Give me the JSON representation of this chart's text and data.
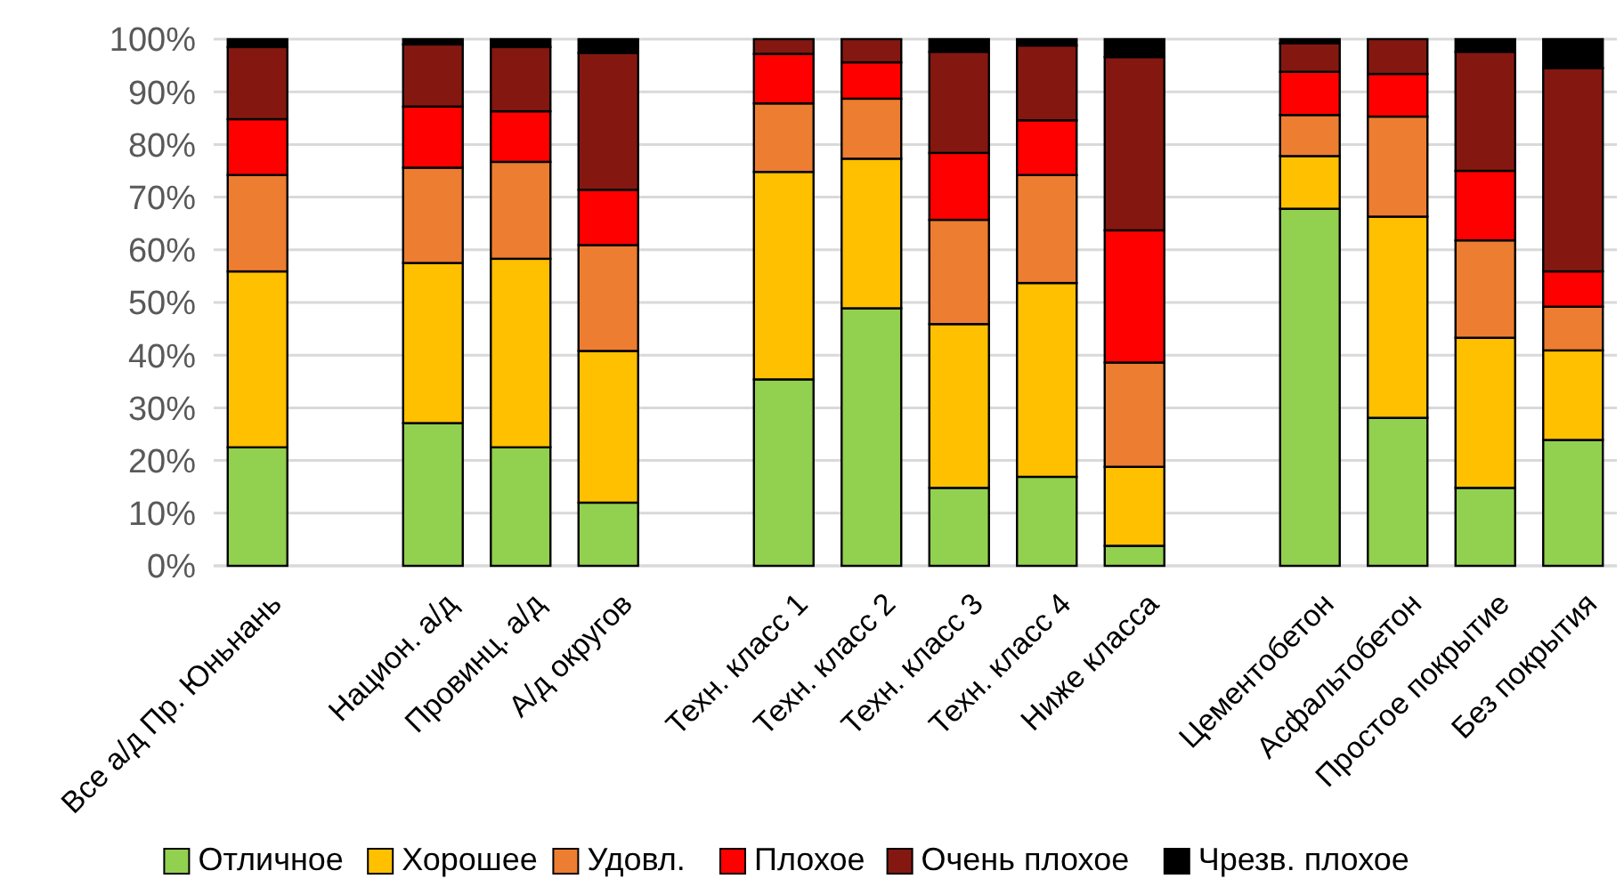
{
  "chart_data": {
    "type": "bar",
    "stacked": true,
    "categories": [
      "Все а/д Пр. Юньнань",
      null,
      "Национ. а/д",
      "Провинц. а/д",
      "А/д округов",
      null,
      "Техн. класс 1",
      "Техн. класс 2",
      "Техн. класс 3",
      "Техн. класс 4",
      "Ниже класса",
      null,
      "Цементобетон",
      "Асфальтобетон",
      "Простое покрытие",
      "Без покрытия"
    ],
    "series": [
      {
        "name": "Отличное",
        "color": "#92d050",
        "values": [
          22.5,
          null,
          27.1,
          22.5,
          12.0,
          null,
          35.4,
          48.9,
          14.8,
          16.9,
          3.8,
          null,
          67.8,
          28.1,
          14.8,
          23.9
        ]
      },
      {
        "name": "Хорошее",
        "color": "#ffc000",
        "values": [
          33.4,
          null,
          30.4,
          35.8,
          28.8,
          null,
          39.4,
          28.4,
          31.1,
          36.8,
          15.0,
          null,
          10.0,
          38.2,
          28.5,
          17.0
        ]
      },
      {
        "name": "Удовл.",
        "color": "#ed7d31",
        "values": [
          18.3,
          null,
          18.1,
          18.4,
          20.1,
          null,
          13.0,
          11.4,
          19.8,
          20.5,
          19.8,
          null,
          7.8,
          19.0,
          18.5,
          8.3
        ]
      },
      {
        "name": "Плохое",
        "color": "#ff0000",
        "values": [
          10.6,
          null,
          11.6,
          9.6,
          10.5,
          null,
          9.4,
          6.9,
          12.7,
          10.4,
          25.1,
          null,
          8.2,
          8.1,
          13.2,
          6.7
        ]
      },
      {
        "name": "Очень плохое",
        "color": "#841811",
        "values": [
          13.7,
          null,
          11.8,
          12.2,
          26.0,
          null,
          2.8,
          4.4,
          19.2,
          14.2,
          32.9,
          null,
          5.4,
          6.6,
          22.6,
          38.6
        ]
      },
      {
        "name": "Чрезв. плохое",
        "color": "#000000",
        "values": [
          1.5,
          null,
          1.0,
          1.5,
          2.6,
          null,
          0,
          0,
          2.4,
          1.2,
          3.4,
          null,
          0.8,
          0,
          2.4,
          5.5
        ]
      }
    ],
    "ylim": [
      0,
      100
    ],
    "yticks": [
      {
        "value": 0,
        "label": "0%"
      },
      {
        "value": 10,
        "label": "10%"
      },
      {
        "value": 20,
        "label": "20%"
      },
      {
        "value": 30,
        "label": "30%"
      },
      {
        "value": 40,
        "label": "40%"
      },
      {
        "value": 50,
        "label": "50%"
      },
      {
        "value": 60,
        "label": "60%"
      },
      {
        "value": 70,
        "label": "70%"
      },
      {
        "value": 80,
        "label": "80%"
      },
      {
        "value": 90,
        "label": "90%"
      },
      {
        "value": 100,
        "label": "100%"
      }
    ],
    "grid": "y",
    "legend": "bottom"
  }
}
